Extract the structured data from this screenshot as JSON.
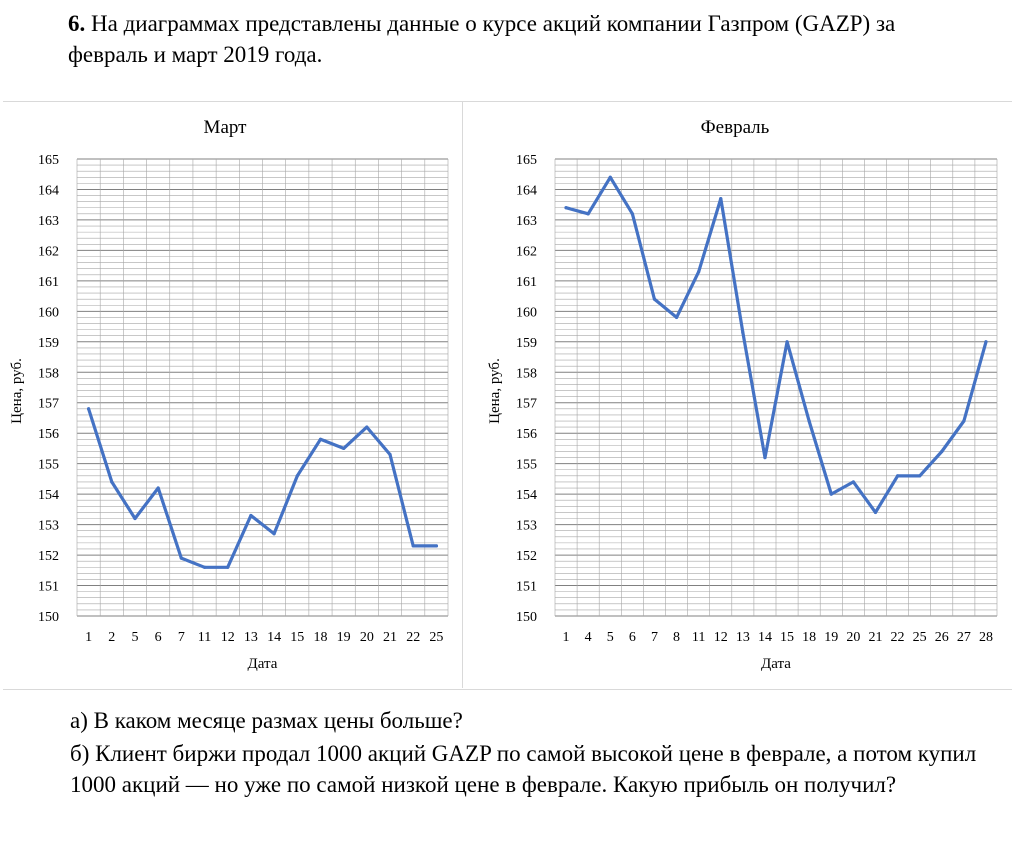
{
  "problem": {
    "number": "6.",
    "text": "На диаграммах представлены данные о курсе акций компании Газпром (GAZP) за февраль и март 2019 года."
  },
  "questions": {
    "a": "а) В каком месяце размах цены больше?",
    "b": "б) Клиент биржи продал 1000 акций GAZP по самой высокой цене в феврале, а потом купил 1000 акций — но уже по самой низкой цене в феврале. Какую прибыль он получил?"
  },
  "style": {
    "line_color": "#4472C4",
    "grid_color": "#a6a6a6"
  },
  "chart_data": [
    {
      "type": "line",
      "title": "Март",
      "xlabel": "Дата",
      "ylabel": "Цена, руб.",
      "ylim": [
        150,
        165
      ],
      "y_ticks": [
        150,
        151,
        152,
        153,
        154,
        155,
        156,
        157,
        158,
        159,
        160,
        161,
        162,
        163,
        164,
        165
      ],
      "minor_step": 0.2,
      "grid": true,
      "categories": [
        "1",
        "2",
        "5",
        "6",
        "7",
        "11",
        "12",
        "13",
        "14",
        "15",
        "18",
        "19",
        "20",
        "21",
        "22",
        "25"
      ],
      "values": [
        156.8,
        154.4,
        153.2,
        154.2,
        151.9,
        151.6,
        151.6,
        153.3,
        152.7,
        154.6,
        155.8,
        155.5,
        156.2,
        155.3,
        152.3,
        152.3
      ]
    },
    {
      "type": "line",
      "title": "Февраль",
      "xlabel": "Дата",
      "ylabel": "Цена, руб.",
      "ylim": [
        150,
        165
      ],
      "y_ticks": [
        150,
        151,
        152,
        153,
        154,
        155,
        156,
        157,
        158,
        159,
        160,
        161,
        162,
        163,
        164,
        165
      ],
      "minor_step": 0.2,
      "grid": true,
      "categories": [
        "1",
        "4",
        "5",
        "6",
        "7",
        "8",
        "11",
        "12",
        "13",
        "14",
        "15",
        "18",
        "19",
        "20",
        "21",
        "22",
        "25",
        "26",
        "27",
        "28"
      ],
      "values": [
        163.4,
        163.2,
        164.4,
        163.2,
        160.4,
        159.8,
        161.3,
        163.7,
        159.3,
        155.2,
        159.0,
        156.4,
        154.0,
        154.4,
        153.4,
        154.6,
        154.6,
        155.4,
        156.4,
        159.0
      ]
    }
  ]
}
